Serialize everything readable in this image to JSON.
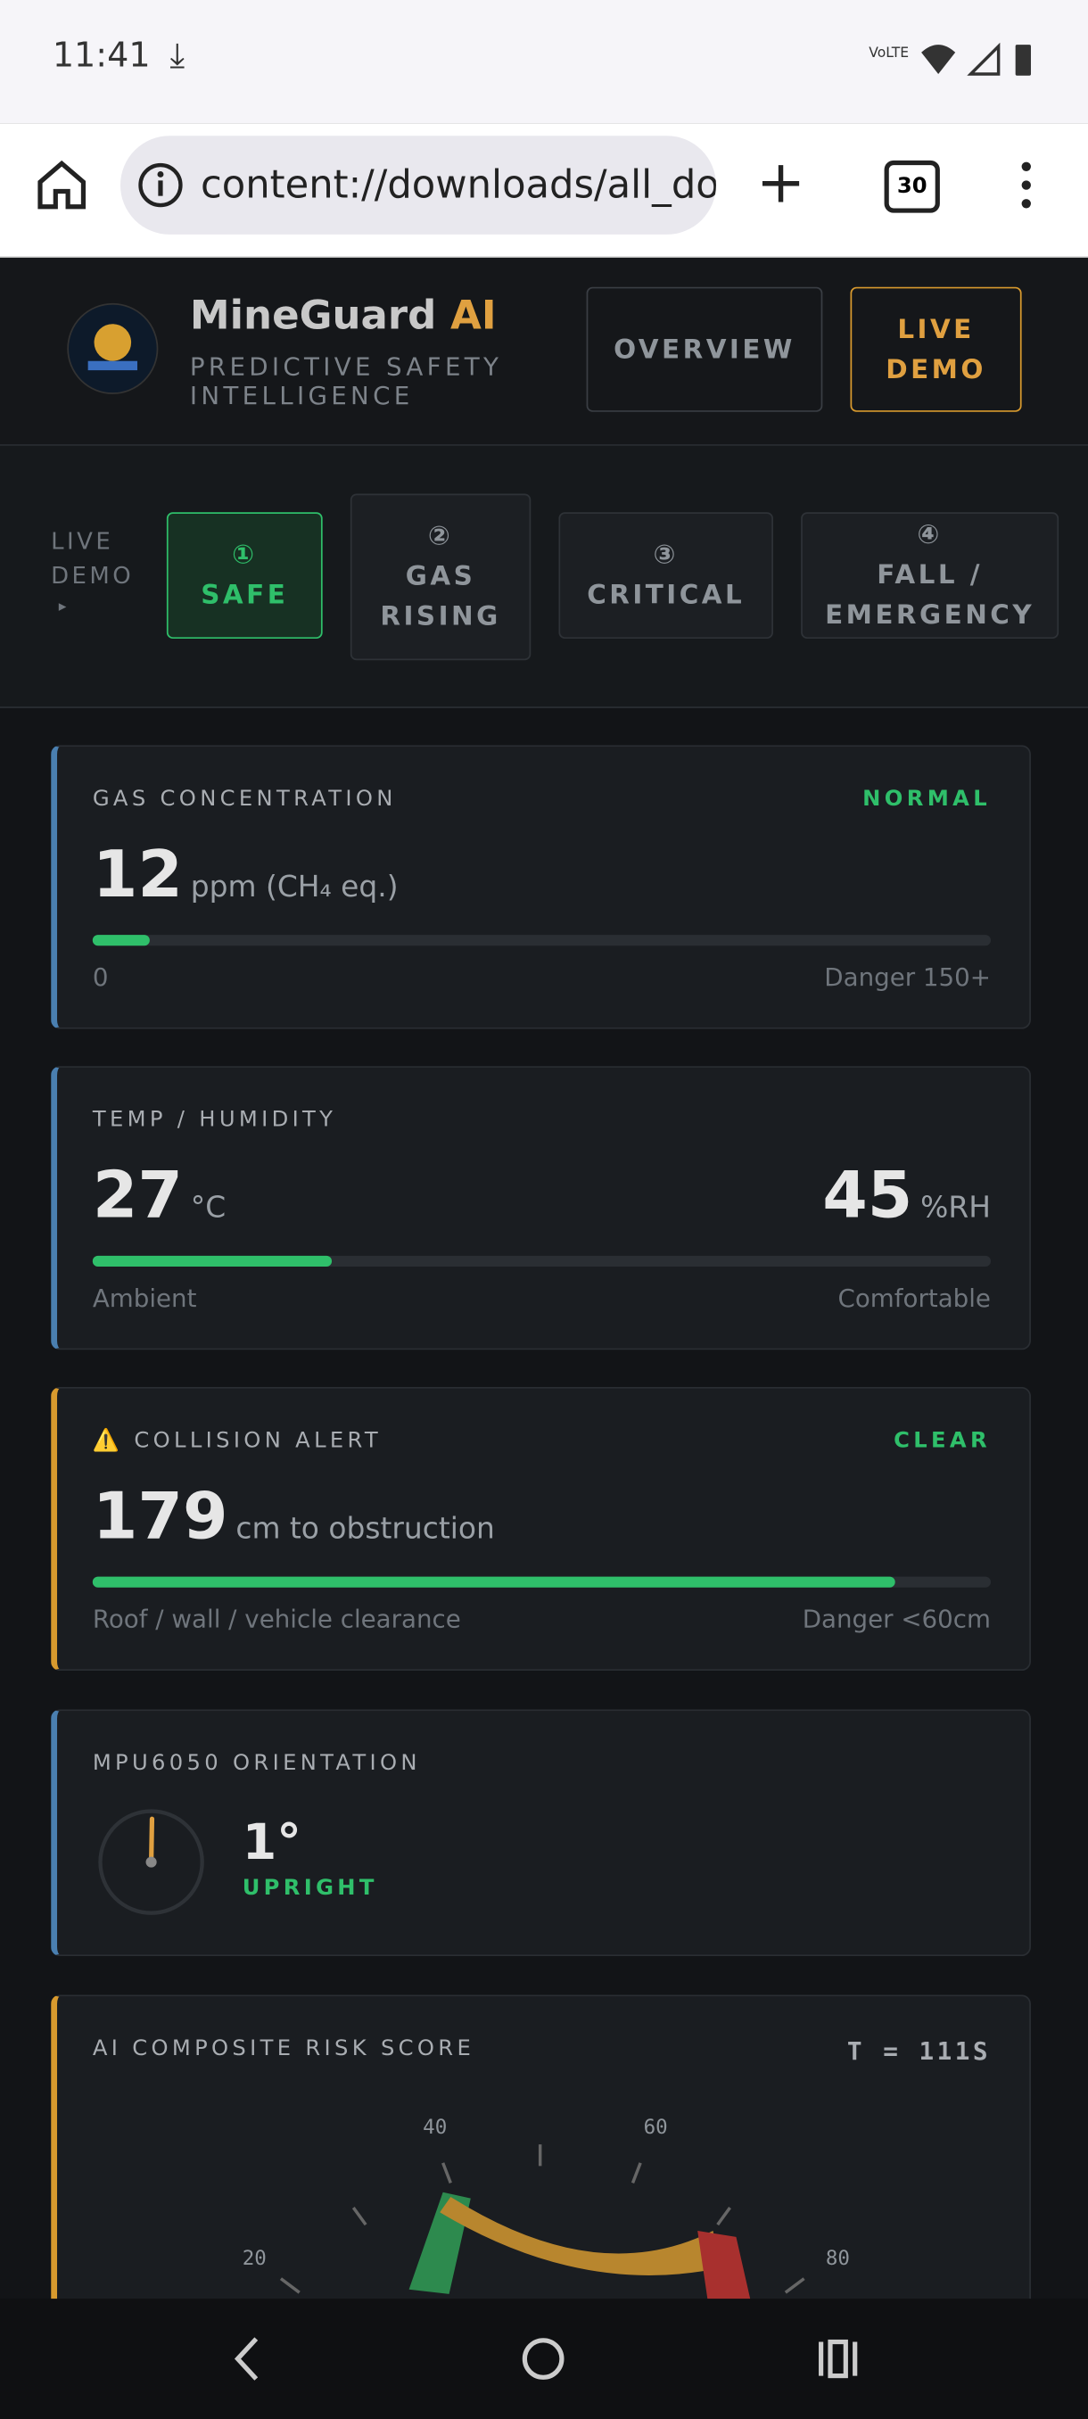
{
  "status_bar": {
    "time": "11:41",
    "network": "VoLTE"
  },
  "browser": {
    "url": "content://downloads/all_dov",
    "tab_count": "30"
  },
  "header": {
    "brand": "MineGuard",
    "brand_accent": "AI",
    "subtitle": "PREDICTIVE SAFETY INTELLIGENCE",
    "buttons": [
      "OVERVIEW",
      "LIVE DEMO"
    ]
  },
  "demo_bar": {
    "label": "LIVE DEMO",
    "arrow": "▸",
    "steps": [
      {
        "num": "①",
        "label": "SAFE"
      },
      {
        "num": "②",
        "label": "GAS RISING"
      },
      {
        "num": "③",
        "label": "CRITICAL"
      },
      {
        "num": "④",
        "label": "FALL / EMERGENCY"
      }
    ]
  },
  "cards": [
    {
      "title": "GAS CONCENTRATION",
      "status": "NORMAL",
      "value": "12",
      "unit": "ppm (CH₄ eq.)",
      "min_label": "0",
      "max_label": "Danger 150+"
    },
    {
      "title": "TEMP / HUMIDITY",
      "value": "27",
      "unit": "°C",
      "value2": "45",
      "unit2": "%RH",
      "min_label": "Ambient",
      "max_label": "Comfortable"
    },
    {
      "icon": "⚠️",
      "title": "COLLISION ALERT",
      "status": "CLEAR",
      "value": "179",
      "unit": "cm to obstruction",
      "min_label": "Roof / wall / vehicle clearance",
      "max_label": "Danger <60cm"
    },
    {
      "title": "MPU6050 ORIENTATION",
      "value": "1°",
      "status": "UPRIGHT"
    },
    {
      "title": "AI COMPOSITE RISK SCORE",
      "time": "T = 111S",
      "gauge_ticks": [
        "20",
        "40",
        "60",
        "80"
      ]
    }
  ]
}
